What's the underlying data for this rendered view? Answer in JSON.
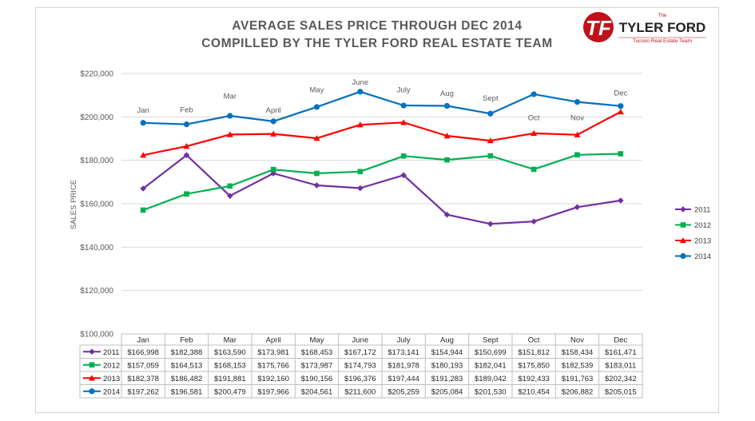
{
  "colors": {
    "2011": "#7030a0",
    "2012": "#00b050",
    "2013": "#ff0000",
    "2014": "#0070c0",
    "grid": "#d9d9d9",
    "brand_red": "#c0121a"
  },
  "logo": {
    "mark": "TF",
    "small": "The",
    "name": "TYLER FORD",
    "sub": "Tucson Real Estate Team"
  },
  "chart_data": {
    "type": "line",
    "title": "AVERAGE SALES PRICE THROUGH DEC 2014",
    "subtitle": "COMPILLED BY THE TYLER FORD REAL ESTATE TEAM",
    "ylabel": "SALES PRICE",
    "xlabel": "",
    "ylim": [
      100000,
      220000
    ],
    "y_ticks": [
      "$100,000",
      "$120,000",
      "$140,000",
      "$160,000",
      "$180,000",
      "$200,000",
      "$220,000"
    ],
    "y_tick_values": [
      100000,
      120000,
      140000,
      160000,
      180000,
      200000,
      220000
    ],
    "categories": [
      "Jan",
      "Feb",
      "Mar",
      "April",
      "May",
      "June",
      "July",
      "Aug",
      "Sept",
      "Oct",
      "Nov",
      "Dec"
    ],
    "grid": true,
    "legend_position": "right",
    "series": [
      {
        "name": "2011",
        "marker": "diamond",
        "values": [
          166998,
          182388,
          163590,
          173981,
          168453,
          167172,
          173141,
          154944,
          150699,
          151812,
          158434,
          161471
        ],
        "labels": [
          "$166,998",
          "$182,388",
          "$163,590",
          "$173,981",
          "$168,453",
          "$167,172",
          "$173,141",
          "$154,944",
          "$150,699",
          "$151,812",
          "$158,434",
          "$161,471"
        ]
      },
      {
        "name": "2012",
        "marker": "square",
        "values": [
          157059,
          164513,
          168153,
          175766,
          173987,
          174793,
          181978,
          180193,
          182041,
          175850,
          182539,
          183011
        ],
        "labels": [
          "$157,059",
          "$164,513",
          "$168,153",
          "$175,766",
          "$173,987",
          "$174,793",
          "$181,978",
          "$180,193",
          "$182,041",
          "$175,850",
          "$182,539",
          "$183,011"
        ]
      },
      {
        "name": "2013",
        "marker": "triangle",
        "values": [
          182378,
          186482,
          191881,
          192160,
          190156,
          196376,
          197444,
          191283,
          189042,
          192433,
          191763,
          202342
        ],
        "labels": [
          "$182,378",
          "$186,482",
          "$191,881",
          "$192,160",
          "$190,156",
          "$196,376",
          "$197,444",
          "$191,283",
          "$189,042",
          "$192,433",
          "$191,763",
          "$202,342"
        ]
      },
      {
        "name": "2014",
        "marker": "circle",
        "values": [
          197262,
          196581,
          200479,
          197966,
          204561,
          211600,
          205259,
          205084,
          201530,
          210454,
          206882,
          205015
        ],
        "labels": [
          "$197,262",
          "$196,581",
          "$200,479",
          "$197,966",
          "$204,561",
          "$211,600",
          "$205,259",
          "$205,084",
          "$201,530",
          "$210,454",
          "$206,882",
          "$205,015"
        ]
      }
    ],
    "annotations": [
      {
        "text": "Jan",
        "x": "Jan",
        "y": 203000
      },
      {
        "text": "Feb",
        "x": "Feb",
        "y": 203200
      },
      {
        "text": "Mar",
        "x": "Mar",
        "y": 209500
      },
      {
        "text": "April",
        "x": "April",
        "y": 203000
      },
      {
        "text": "May",
        "x": "May",
        "y": 212500
      },
      {
        "text": "June",
        "x": "June",
        "y": 216000
      },
      {
        "text": "July",
        "x": "July",
        "y": 212500
      },
      {
        "text": "Aug",
        "x": "Aug",
        "y": 210800
      },
      {
        "text": "Sept",
        "x": "Sept",
        "y": 208500
      },
      {
        "text": "Oct",
        "x": "Oct",
        "y": 199500
      },
      {
        "text": "Nov",
        "x": "Nov",
        "y": 199500
      },
      {
        "text": "Dec",
        "x": "Dec",
        "y": 211000
      }
    ]
  }
}
